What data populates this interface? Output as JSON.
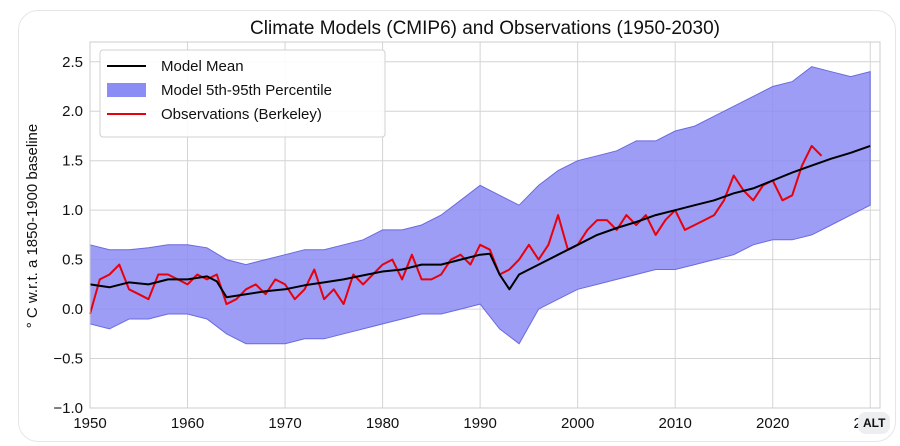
{
  "chart_data": {
    "type": "line",
    "title": "Climate Models (CMIP6) and Observations (1950-2030)",
    "xlabel": "",
    "ylabel": "° C w.r.t. a 1850-1900 baseline",
    "xlim": [
      1950,
      2031
    ],
    "ylim": [
      -1.0,
      2.7
    ],
    "xticks": [
      1950,
      1960,
      1970,
      1980,
      1990,
      2000,
      2010,
      2020,
      2030
    ],
    "xtick_labels": [
      "1950",
      "1960",
      "1970",
      "1980",
      "1990",
      "2000",
      "2010",
      "2020",
      "2030"
    ],
    "yticks": [
      -1.0,
      -0.5,
      0.0,
      0.5,
      1.0,
      1.5,
      2.0,
      2.5
    ],
    "ytick_labels": [
      "−1.0",
      "−0.5",
      "0.0",
      "0.5",
      "1.0",
      "1.5",
      "2.0",
      "2.5"
    ],
    "grid": true,
    "legend_position": "top-left",
    "legend": [
      {
        "label": "Model Mean",
        "kind": "line",
        "color": "#000000"
      },
      {
        "label": "Model 5th-95th Percentile",
        "kind": "patch",
        "color": "#8c8cf5"
      },
      {
        "label": "Observations (Berkeley)",
        "kind": "line",
        "color": "#e8000b"
      }
    ],
    "band": {
      "name": "Model 5th-95th Percentile",
      "x": [
        1950,
        1952,
        1954,
        1956,
        1958,
        1960,
        1962,
        1964,
        1966,
        1968,
        1970,
        1972,
        1974,
        1976,
        1978,
        1980,
        1982,
        1984,
        1986,
        1988,
        1990,
        1992,
        1994,
        1996,
        1998,
        2000,
        2002,
        2004,
        2006,
        2008,
        2010,
        2012,
        2014,
        2016,
        2018,
        2020,
        2022,
        2024,
        2026,
        2028,
        2030
      ],
      "upper": [
        0.65,
        0.6,
        0.6,
        0.62,
        0.65,
        0.65,
        0.62,
        0.5,
        0.45,
        0.5,
        0.55,
        0.6,
        0.6,
        0.65,
        0.7,
        0.8,
        0.8,
        0.85,
        0.95,
        1.1,
        1.25,
        1.15,
        1.05,
        1.25,
        1.4,
        1.5,
        1.55,
        1.6,
        1.7,
        1.7,
        1.8,
        1.85,
        1.95,
        2.05,
        2.15,
        2.25,
        2.3,
        2.45,
        2.4,
        2.35,
        2.4
      ],
      "lower": [
        -0.15,
        -0.2,
        -0.1,
        -0.1,
        -0.05,
        -0.05,
        -0.1,
        -0.25,
        -0.35,
        -0.35,
        -0.35,
        -0.3,
        -0.3,
        -0.25,
        -0.2,
        -0.15,
        -0.1,
        -0.05,
        -0.05,
        0.0,
        0.05,
        -0.2,
        -0.35,
        0.0,
        0.1,
        0.2,
        0.25,
        0.3,
        0.35,
        0.4,
        0.4,
        0.45,
        0.5,
        0.55,
        0.65,
        0.7,
        0.7,
        0.75,
        0.85,
        0.95,
        1.05
      ]
    },
    "series": [
      {
        "name": "Model Mean",
        "color": "#000000",
        "x": [
          1950,
          1952,
          1954,
          1956,
          1958,
          1960,
          1962,
          1963,
          1964,
          1966,
          1968,
          1970,
          1972,
          1974,
          1976,
          1978,
          1980,
          1982,
          1984,
          1986,
          1988,
          1990,
          1991,
          1992,
          1993,
          1994,
          1996,
          1998,
          2000,
          2002,
          2004,
          2006,
          2008,
          2010,
          2012,
          2014,
          2016,
          2018,
          2020,
          2022,
          2024,
          2026,
          2028,
          2030
        ],
        "values": [
          0.25,
          0.22,
          0.27,
          0.25,
          0.3,
          0.3,
          0.33,
          0.28,
          0.12,
          0.15,
          0.18,
          0.2,
          0.24,
          0.27,
          0.3,
          0.34,
          0.38,
          0.4,
          0.45,
          0.45,
          0.5,
          0.55,
          0.56,
          0.35,
          0.2,
          0.35,
          0.45,
          0.55,
          0.65,
          0.75,
          0.82,
          0.88,
          0.95,
          1.0,
          1.05,
          1.1,
          1.17,
          1.22,
          1.3,
          1.38,
          1.45,
          1.52,
          1.58,
          1.65
        ]
      },
      {
        "name": "Observations (Berkeley)",
        "color": "#e8000b",
        "x": [
          1950,
          1951,
          1952,
          1953,
          1954,
          1955,
          1956,
          1957,
          1958,
          1959,
          1960,
          1961,
          1962,
          1963,
          1964,
          1965,
          1966,
          1967,
          1968,
          1969,
          1970,
          1971,
          1972,
          1973,
          1974,
          1975,
          1976,
          1977,
          1978,
          1979,
          1980,
          1981,
          1982,
          1983,
          1984,
          1985,
          1986,
          1987,
          1988,
          1989,
          1990,
          1991,
          1992,
          1993,
          1994,
          1995,
          1996,
          1997,
          1998,
          1999,
          2000,
          2001,
          2002,
          2003,
          2004,
          2005,
          2006,
          2007,
          2008,
          2009,
          2010,
          2011,
          2012,
          2013,
          2014,
          2015,
          2016,
          2017,
          2018,
          2019,
          2020,
          2021,
          2022,
          2023,
          2024,
          2025
        ],
        "values": [
          -0.05,
          0.3,
          0.35,
          0.45,
          0.2,
          0.15,
          0.1,
          0.35,
          0.35,
          0.3,
          0.25,
          0.35,
          0.3,
          0.35,
          0.05,
          0.1,
          0.2,
          0.25,
          0.15,
          0.3,
          0.25,
          0.1,
          0.2,
          0.4,
          0.1,
          0.2,
          0.05,
          0.35,
          0.25,
          0.35,
          0.45,
          0.5,
          0.3,
          0.55,
          0.3,
          0.3,
          0.35,
          0.5,
          0.55,
          0.45,
          0.65,
          0.6,
          0.35,
          0.4,
          0.5,
          0.65,
          0.5,
          0.65,
          0.95,
          0.6,
          0.65,
          0.8,
          0.9,
          0.9,
          0.8,
          0.95,
          0.85,
          0.95,
          0.75,
          0.9,
          1.0,
          0.8,
          0.85,
          0.9,
          0.95,
          1.1,
          1.35,
          1.2,
          1.1,
          1.25,
          1.3,
          1.1,
          1.15,
          1.45,
          1.65,
          1.55
        ]
      }
    ]
  },
  "badge": {
    "label": "ALT"
  }
}
